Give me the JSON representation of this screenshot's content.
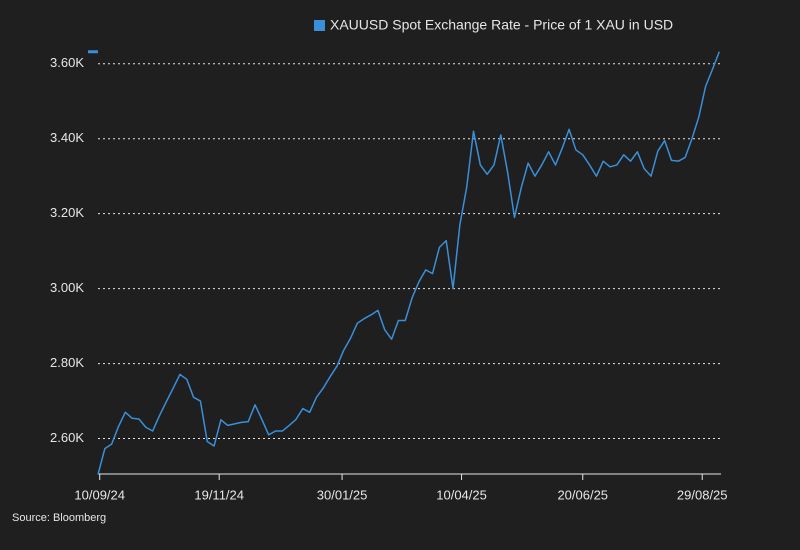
{
  "chart_data": {
    "type": "line",
    "source": "Source: Bloomberg",
    "x": [
      "2024-09-09",
      "2024-09-13",
      "2024-09-17",
      "2024-09-21",
      "2024-09-25",
      "2024-09-29",
      "2024-10-03",
      "2024-10-07",
      "2024-10-11",
      "2024-10-15",
      "2024-10-19",
      "2024-10-23",
      "2024-10-27",
      "2024-10-31",
      "2024-11-04",
      "2024-11-08",
      "2024-11-12",
      "2024-11-16",
      "2024-11-20",
      "2024-11-24",
      "2024-11-28",
      "2024-12-02",
      "2024-12-06",
      "2024-12-10",
      "2024-12-14",
      "2024-12-18",
      "2024-12-22",
      "2024-12-26",
      "2024-12-30",
      "2025-01-03",
      "2025-01-07",
      "2025-01-11",
      "2025-01-15",
      "2025-01-19",
      "2025-01-23",
      "2025-01-27",
      "2025-01-31",
      "2025-02-04",
      "2025-02-08",
      "2025-02-12",
      "2025-02-16",
      "2025-02-20",
      "2025-02-24",
      "2025-02-28",
      "2025-03-04",
      "2025-03-08",
      "2025-03-12",
      "2025-03-16",
      "2025-03-20",
      "2025-03-24",
      "2025-03-28",
      "2025-04-01",
      "2025-04-05",
      "2025-04-09",
      "2025-04-13",
      "2025-04-17",
      "2025-04-21",
      "2025-04-25",
      "2025-04-29",
      "2025-05-03",
      "2025-05-07",
      "2025-05-11",
      "2025-05-15",
      "2025-05-19",
      "2025-05-23",
      "2025-05-27",
      "2025-05-31",
      "2025-06-04",
      "2025-06-08",
      "2025-06-12",
      "2025-06-16",
      "2025-06-20",
      "2025-06-24",
      "2025-06-28",
      "2025-07-02",
      "2025-07-06",
      "2025-07-10",
      "2025-07-14",
      "2025-07-18",
      "2025-07-22",
      "2025-07-26",
      "2025-07-30",
      "2025-08-03",
      "2025-08-07",
      "2025-08-11",
      "2025-08-15",
      "2025-08-19",
      "2025-08-23",
      "2025-08-27",
      "2025-08-31",
      "2025-09-04",
      "2025-09-08"
    ],
    "series": [
      {
        "name": "XAUUSD Spot Exchange Rate - Price of 1 XAU in USD",
        "color": "#3a8fd9",
        "values": [
          2504,
          2573,
          2585,
          2632,
          2670,
          2654,
          2652,
          2630,
          2620,
          2661,
          2698,
          2734,
          2771,
          2758,
          2710,
          2700,
          2592,
          2580,
          2650,
          2635,
          2639,
          2643,
          2645,
          2690,
          2651,
          2610,
          2620,
          2620,
          2635,
          2651,
          2680,
          2670,
          2710,
          2735,
          2765,
          2793,
          2836,
          2868,
          2908,
          2920,
          2930,
          2942,
          2890,
          2865,
          2915,
          2915,
          2975,
          3018,
          3050,
          3040,
          3110,
          3128,
          3000,
          3170,
          3270,
          3420,
          3330,
          3305,
          3330,
          3410,
          3310,
          3190,
          3270,
          3335,
          3300,
          3330,
          3365,
          3330,
          3375,
          3425,
          3370,
          3357,
          3330,
          3300,
          3340,
          3325,
          3330,
          3357,
          3340,
          3365,
          3320,
          3300,
          3367,
          3395,
          3342,
          3340,
          3350,
          3400,
          3458,
          3540,
          3585,
          3632
        ]
      }
    ],
    "xlim": [
      "2024-09-09",
      "2025-09-09"
    ],
    "xticks": [
      {
        "value": "2024-09-10",
        "label": "10/09/24"
      },
      {
        "value": "2024-11-19",
        "label": "19/11/24"
      },
      {
        "value": "2025-01-30",
        "label": "30/01/25"
      },
      {
        "value": "2025-04-10",
        "label": "10/04/25"
      },
      {
        "value": "2025-06-20",
        "label": "20/06/25"
      },
      {
        "value": "2025-08-29",
        "label": "29/08/25"
      }
    ],
    "ylim": [
      2500,
      3650
    ],
    "yticks": [
      {
        "value": 2600,
        "label": "2.60K"
      },
      {
        "value": 2800,
        "label": "2.80K"
      },
      {
        "value": 3000,
        "label": "3.00K"
      },
      {
        "value": 3200,
        "label": "3.20K"
      },
      {
        "value": 3400,
        "label": "3.40K"
      },
      {
        "value": 3600,
        "label": "3.60K"
      }
    ],
    "grid": true
  }
}
